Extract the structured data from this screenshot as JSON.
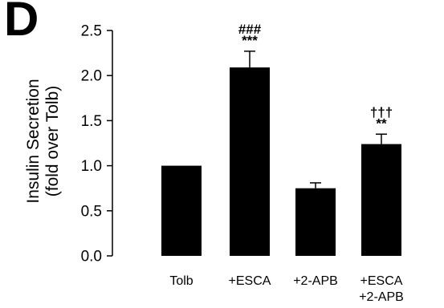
{
  "panel_label": "D",
  "chart_data": {
    "type": "bar",
    "title": "",
    "xlabel": "",
    "ylabel_lines": [
      "Insulin Secretion",
      "(fold over Tolb)"
    ],
    "ylim": [
      0,
      2.5
    ],
    "yticks": [
      "0.0",
      "0.5",
      "1.0",
      "1.5",
      "2.0",
      "2.5"
    ],
    "ytick_values": [
      0,
      0.5,
      1.0,
      1.5,
      2.0,
      2.5
    ],
    "categories": [
      [
        "Tolb"
      ],
      [
        "+ESCA"
      ],
      [
        "+2-APB"
      ],
      [
        "+ESCA",
        "+2-APB"
      ]
    ],
    "values": [
      1.0,
      2.09,
      0.75,
      1.24
    ],
    "errors": [
      0.0,
      0.18,
      0.06,
      0.11
    ],
    "annotations": [
      [],
      [
        "###",
        "***"
      ],
      [],
      [
        "†††",
        "**"
      ]
    ],
    "bar_color": "#000000",
    "grid": false,
    "legend": "none"
  }
}
